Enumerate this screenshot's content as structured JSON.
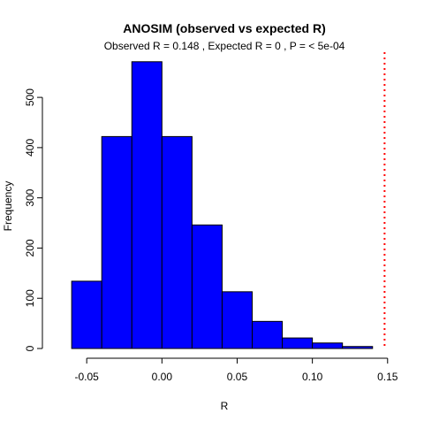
{
  "chart_data": {
    "type": "histogram",
    "title": "ANOSIM (observed vs expected R)",
    "subtitle": "Observed R =  0.148 , Expected R =  0 , P =  < 5e-04",
    "xlabel": "R",
    "ylabel": "Frequency",
    "xlim": [
      -0.073,
      0.156
    ],
    "ylim": [
      0,
      590
    ],
    "bins": [
      {
        "x0": -0.06,
        "x1": -0.04,
        "count": 134
      },
      {
        "x0": -0.04,
        "x1": -0.02,
        "count": 422
      },
      {
        "x0": -0.02,
        "x1": 0.0,
        "count": 571
      },
      {
        "x0": 0.0,
        "x1": 0.02,
        "count": 422
      },
      {
        "x0": 0.02,
        "x1": 0.04,
        "count": 246
      },
      {
        "x0": 0.04,
        "x1": 0.06,
        "count": 113
      },
      {
        "x0": 0.06,
        "x1": 0.08,
        "count": 54
      },
      {
        "x0": 0.08,
        "x1": 0.1,
        "count": 21
      },
      {
        "x0": 0.1,
        "x1": 0.12,
        "count": 11
      },
      {
        "x0": 0.12,
        "x1": 0.14,
        "count": 4
      }
    ],
    "x_ticks": [
      {
        "value": -0.05,
        "label": "-0.05"
      },
      {
        "value": 0.0,
        "label": "0.00"
      },
      {
        "value": 0.05,
        "label": "0.05"
      },
      {
        "value": 0.1,
        "label": "0.10"
      },
      {
        "value": 0.15,
        "label": "0.15"
      }
    ],
    "y_ticks": [
      {
        "value": 0,
        "label": "0"
      },
      {
        "value": 100,
        "label": "100"
      },
      {
        "value": 200,
        "label": "200"
      },
      {
        "value": 300,
        "label": "300"
      },
      {
        "value": 400,
        "label": "400"
      },
      {
        "value": 500,
        "label": "500"
      }
    ],
    "observed_line": {
      "value": 0.148,
      "color": "#ff0000",
      "style": "dotted"
    },
    "bar_fill": "#0000ff",
    "bar_stroke": "#000000",
    "grid": false
  }
}
